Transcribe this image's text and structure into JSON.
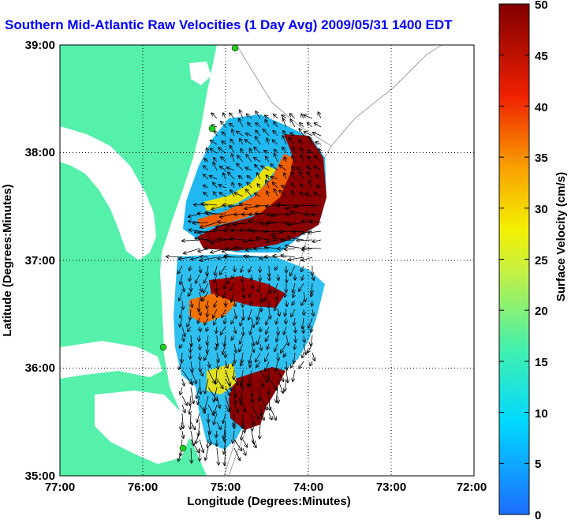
{
  "title": "Southern Mid-Atlantic Raw Velocities (1 Day Avg) 2009/05/31 1400 EDT",
  "x_axis": {
    "label": "Longitude (Degrees:Minutes)",
    "ticks": [
      "77:00",
      "76:00",
      "75:00",
      "74:00",
      "73:00",
      "72:00"
    ]
  },
  "y_axis": {
    "label": "Latitude (Degrees:Minutes)",
    "ticks": [
      "39:00",
      "38:00",
      "37:00",
      "36:00",
      "35:00"
    ]
  },
  "colorbar": {
    "label": "Surface Velocity (cm/s)",
    "ticks": [
      "50",
      "45",
      "40",
      "35",
      "30",
      "25",
      "20",
      "15",
      "10",
      "5",
      "0"
    ],
    "min": 0,
    "max": 50
  },
  "colors": {
    "land": "#55f0aa",
    "water": "#ffffff",
    "title": "#0000ff",
    "slow": "#00c0ff",
    "fast": "#8b0000"
  }
}
